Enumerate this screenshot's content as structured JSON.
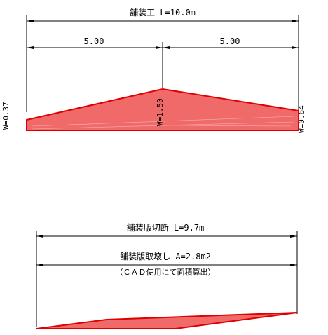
{
  "top_diagram": {
    "title": "舗装工 L=10.0m",
    "segments": [
      "5.00",
      "5.00"
    ],
    "widths": {
      "left": "W=0.37",
      "middle": "W=1.50",
      "right": "W=0.64"
    }
  },
  "bottom_diagram": {
    "title": "舗装版切断 L=9.7m",
    "area_label": "舗装版取壊し A=2.8m2",
    "note": "（ＣＡＤ使用にて面積算出）"
  },
  "colors": {
    "fill": "#f06a6a",
    "outline": "#e00000",
    "line": "#000000"
  }
}
